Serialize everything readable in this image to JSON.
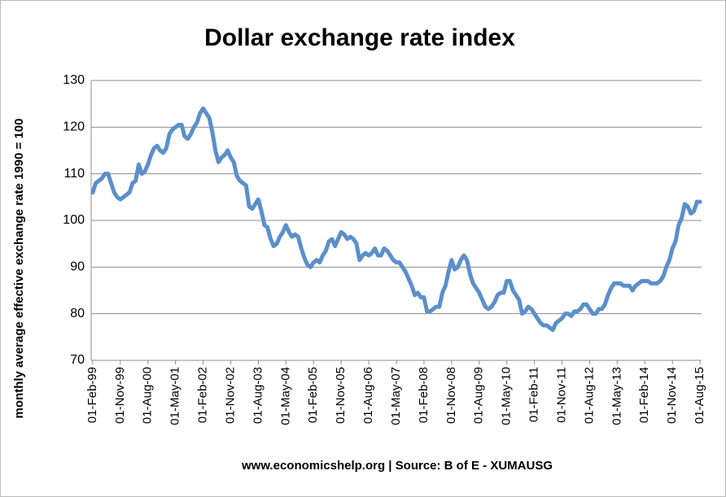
{
  "chart_data": {
    "type": "line",
    "title": "Dollar exchange rate index",
    "y_label": "monthly average effective exchange rate 1990 = 100",
    "source": "www.economicshelp.org | Source: B of E - XUMAUSG",
    "categories": [
      "01-Feb-99",
      null,
      null,
      null,
      null,
      null,
      null,
      null,
      null,
      "01-Nov-99",
      null,
      null,
      null,
      null,
      null,
      null,
      null,
      null,
      "01-Aug-00",
      null,
      null,
      null,
      null,
      null,
      null,
      null,
      null,
      "01-May-01",
      null,
      null,
      null,
      null,
      null,
      null,
      null,
      null,
      "01-Feb-02",
      null,
      null,
      null,
      null,
      null,
      null,
      null,
      null,
      "01-Nov-02",
      null,
      null,
      null,
      null,
      null,
      null,
      null,
      null,
      "01-Aug-03",
      null,
      null,
      null,
      null,
      null,
      null,
      null,
      null,
      "01-May-04",
      null,
      null,
      null,
      null,
      null,
      null,
      null,
      null,
      "01-Feb-05",
      null,
      null,
      null,
      null,
      null,
      null,
      null,
      null,
      "01-Nov-05",
      null,
      null,
      null,
      null,
      null,
      null,
      null,
      null,
      "01-Aug-06",
      null,
      null,
      null,
      null,
      null,
      null,
      null,
      null,
      "01-May-07",
      null,
      null,
      null,
      null,
      null,
      null,
      null,
      null,
      "01-Feb-08",
      null,
      null,
      null,
      null,
      null,
      null,
      null,
      null,
      "01-Nov-08",
      null,
      null,
      null,
      null,
      null,
      null,
      null,
      null,
      "01-Aug-09",
      null,
      null,
      null,
      null,
      null,
      null,
      null,
      null,
      "01-May-10",
      null,
      null,
      null,
      null,
      null,
      null,
      null,
      null,
      "01-Feb-11",
      null,
      null,
      null,
      null,
      null,
      null,
      null,
      null,
      "01-Nov-11",
      null,
      null,
      null,
      null,
      null,
      null,
      null,
      null,
      "01-Aug-12",
      null,
      null,
      null,
      null,
      null,
      null,
      null,
      null,
      "01-May-13",
      null,
      null,
      null,
      null,
      null,
      null,
      null,
      null,
      "01-Feb-14",
      null,
      null,
      null,
      null,
      null,
      null,
      null,
      null,
      "01-Nov-14",
      null,
      null,
      null,
      null,
      null,
      null,
      null,
      null,
      "01-Aug-15"
    ],
    "values": [
      106,
      108,
      108.5,
      109,
      110,
      110,
      108,
      106,
      105,
      104.5,
      105,
      105.5,
      106,
      108,
      108.5,
      112,
      110,
      110.5,
      112,
      114,
      115.5,
      116,
      115,
      114.5,
      115.5,
      118.5,
      119.5,
      120,
      120.5,
      120.5,
      118,
      117.5,
      118.5,
      120,
      121,
      123,
      124,
      123,
      122,
      119,
      115,
      112.5,
      113.5,
      114,
      115,
      113.5,
      112.5,
      109.5,
      108.5,
      108,
      107.5,
      103,
      102.5,
      103.5,
      104.5,
      102,
      99,
      98.5,
      96,
      94.5,
      95,
      96.5,
      97.5,
      99,
      97.5,
      96.5,
      97,
      96.5,
      94,
      92,
      90.5,
      90,
      91,
      91.5,
      91,
      92.5,
      93.5,
      95.5,
      96,
      94.5,
      96,
      97.5,
      97,
      96,
      96.5,
      96,
      95,
      91.5,
      92.5,
      93,
      92.5,
      93,
      94,
      92.5,
      92.5,
      94,
      93.5,
      92.5,
      91.5,
      91,
      91,
      90,
      89,
      87.5,
      86,
      84,
      84.5,
      83.5,
      83.5,
      80.5,
      80.5,
      81,
      81.5,
      81.5,
      84.5,
      86,
      89,
      91.5,
      89.5,
      90,
      91.5,
      92.5,
      91.5,
      88.5,
      86.5,
      85.5,
      84.5,
      83,
      81.5,
      81,
      81.5,
      82.5,
      84,
      84.5,
      84.5,
      87,
      87,
      85,
      84,
      83,
      80,
      80.5,
      81.5,
      81,
      80,
      79,
      78,
      77.5,
      77.5,
      77,
      76.5,
      78,
      78.5,
      79,
      80,
      80,
      79.5,
      80.5,
      80.5,
      81,
      82,
      82,
      81,
      80,
      80,
      81,
      81,
      82,
      84,
      85.5,
      86.5,
      86.5,
      86.5,
      86,
      86,
      86,
      85,
      86,
      86.5,
      87,
      87,
      87,
      86.5,
      86.5,
      86.5,
      87,
      88,
      90,
      91.5,
      94,
      95.5,
      99,
      100.5,
      103.5,
      103,
      101.5,
      102,
      104,
      104
    ],
    "color": "#5b8fcb",
    "ylim": [
      70,
      130
    ],
    "yticks": [
      70,
      80,
      90,
      100,
      110,
      120,
      130
    ],
    "grid": true
  }
}
